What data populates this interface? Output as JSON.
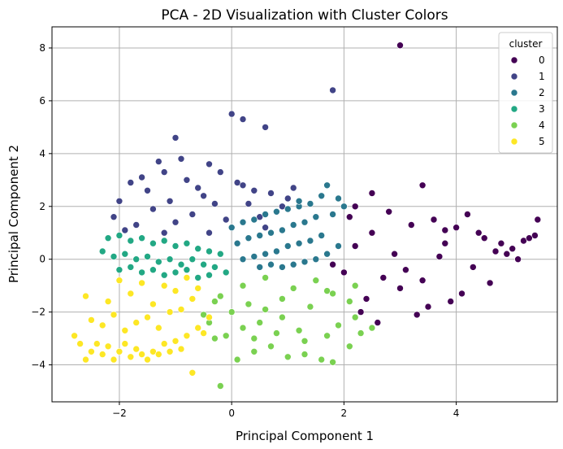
{
  "chart_data": {
    "type": "scatter",
    "title": "PCA - 2D Visualization with Cluster Colors",
    "xlabel": "Principal Component 1",
    "ylabel": "Principal Component 2",
    "xlim": [
      -3.2,
      5.8
    ],
    "ylim": [
      -5.4,
      8.8
    ],
    "xticks": [
      -2,
      0,
      2,
      4
    ],
    "yticks": [
      -4,
      -2,
      0,
      2,
      4,
      6,
      8
    ],
    "xtick_labels": [
      "−2",
      "0",
      "2",
      "4"
    ],
    "ytick_labels": [
      "−4",
      "−2",
      "0",
      "2",
      "4",
      "6",
      "8"
    ],
    "grid": true,
    "legend": {
      "title": "cluster",
      "placement": "top-right",
      "entries": [
        "0",
        "1",
        "2",
        "3",
        "4",
        "5"
      ]
    },
    "colors": [
      "#440154",
      "#414487",
      "#2a788e",
      "#22a884",
      "#7ad151",
      "#fde725"
    ],
    "series": [
      {
        "name": "0",
        "x": [
          3.0,
          2.2,
          2.5,
          3.4,
          3.8,
          4.2,
          4.5,
          4.8,
          5.0,
          5.2,
          5.4,
          5.45,
          2.1,
          2.8,
          3.2,
          3.6,
          4.0,
          4.4,
          4.7,
          5.3,
          2.6,
          2.3,
          3.5,
          4.1,
          3.9,
          4.6,
          2.4,
          3.3,
          3.1,
          2.9,
          2.7,
          2.0,
          1.8,
          3.7,
          4.3,
          5.1,
          4.9,
          2.2,
          3.0,
          3.8,
          2.5,
          3.4
        ],
        "y": [
          8.1,
          2.0,
          2.5,
          2.8,
          1.1,
          1.7,
          0.8,
          0.6,
          0.4,
          0.7,
          0.9,
          1.5,
          1.6,
          1.8,
          1.3,
          1.5,
          1.2,
          1.0,
          0.3,
          0.8,
          -2.4,
          -2.0,
          -1.8,
          -1.3,
          -1.6,
          -0.9,
          -1.5,
          -2.1,
          -0.4,
          0.2,
          -0.7,
          -0.5,
          -0.2,
          0.1,
          -0.3,
          0.0,
          0.2,
          0.5,
          -1.1,
          0.6,
          1.0,
          -0.8
        ]
      },
      {
        "name": "1",
        "x": [
          -1.0,
          0.0,
          0.2,
          0.6,
          1.8,
          -0.9,
          -1.3,
          -1.6,
          -1.8,
          -2.0,
          -2.1,
          -1.5,
          -1.2,
          -0.8,
          -0.6,
          -0.4,
          -0.2,
          0.1,
          0.4,
          0.7,
          1.0,
          1.1,
          0.9,
          -1.1,
          -1.4,
          -0.5,
          -0.3,
          0.3,
          -1.7,
          -0.7,
          -0.1,
          0.5,
          0.8,
          -1.9,
          -1.0,
          0.0,
          -0.4,
          -1.2,
          0.6,
          0.2
        ],
        "y": [
          4.6,
          5.5,
          5.3,
          5.0,
          6.4,
          3.8,
          3.7,
          3.1,
          2.9,
          2.2,
          1.6,
          2.6,
          3.3,
          3.0,
          2.7,
          3.6,
          3.3,
          2.9,
          2.6,
          2.5,
          2.3,
          2.7,
          2.0,
          2.2,
          1.9,
          2.4,
          2.1,
          2.1,
          1.3,
          1.7,
          1.5,
          1.6,
          1.8,
          1.1,
          1.4,
          1.2,
          1.0,
          1.0,
          1.2,
          2.8
        ]
      },
      {
        "name": "2",
        "x": [
          1.7,
          1.9,
          1.6,
          1.4,
          1.2,
          1.0,
          0.8,
          0.6,
          0.4,
          0.2,
          0.0,
          1.8,
          1.5,
          1.3,
          1.1,
          0.9,
          0.7,
          0.5,
          0.3,
          0.1,
          1.6,
          1.4,
          1.2,
          1.0,
          0.8,
          0.6,
          0.4,
          0.2,
          1.7,
          1.5,
          1.3,
          1.1,
          0.9,
          0.7,
          0.5,
          1.9,
          2.0,
          1.2
        ],
        "y": [
          2.8,
          2.3,
          2.4,
          2.1,
          2.0,
          1.9,
          1.8,
          1.7,
          1.5,
          1.4,
          1.2,
          1.7,
          1.6,
          1.4,
          1.3,
          1.1,
          1.0,
          0.9,
          0.8,
          0.6,
          0.9,
          0.7,
          0.6,
          0.5,
          0.3,
          0.2,
          0.1,
          0.0,
          0.2,
          0.0,
          -0.1,
          -0.2,
          -0.3,
          -0.2,
          -0.3,
          0.5,
          2.0,
          2.2
        ]
      },
      {
        "name": "3",
        "x": [
          -2.3,
          -2.2,
          -2.0,
          -1.8,
          -1.6,
          -1.4,
          -1.2,
          -1.0,
          -0.8,
          -0.6,
          -0.4,
          -0.2,
          -2.1,
          -1.9,
          -1.7,
          -1.5,
          -1.3,
          -1.1,
          -0.9,
          -0.7,
          -0.5,
          -0.3,
          -2.0,
          -1.8,
          -1.6,
          -1.4,
          -1.2,
          -1.0,
          -0.8,
          -0.6,
          -0.4,
          -0.1
        ],
        "y": [
          0.3,
          0.8,
          0.9,
          0.7,
          0.8,
          0.6,
          0.7,
          0.5,
          0.6,
          0.4,
          0.3,
          0.2,
          0.1,
          0.2,
          0.0,
          0.1,
          -0.1,
          0.0,
          -0.2,
          0.0,
          -0.2,
          -0.3,
          -0.4,
          -0.3,
          -0.5,
          -0.4,
          -0.6,
          -0.5,
          -0.4,
          -0.7,
          -0.6,
          -0.5
        ]
      },
      {
        "name": "4",
        "x": [
          -0.2,
          0.1,
          0.4,
          0.7,
          1.0,
          1.3,
          1.6,
          1.8,
          2.1,
          2.3,
          2.5,
          2.2,
          1.7,
          1.9,
          1.2,
          0.8,
          0.5,
          0.2,
          -0.1,
          -0.3,
          -0.4,
          -0.5,
          0.0,
          0.3,
          0.6,
          0.9,
          1.4,
          1.7,
          1.1,
          -0.2,
          0.2,
          0.6,
          1.5,
          1.8,
          2.1,
          0.9,
          0.4,
          -0.3,
          1.3,
          2.2
        ],
        "y": [
          -4.8,
          -3.8,
          -3.5,
          -3.3,
          -3.7,
          -3.6,
          -3.8,
          -3.9,
          -3.3,
          -2.8,
          -2.6,
          -2.2,
          -2.9,
          -2.5,
          -2.7,
          -2.8,
          -2.4,
          -2.6,
          -2.9,
          -3.0,
          -2.4,
          -2.1,
          -2.0,
          -1.7,
          -1.9,
          -1.5,
          -1.8,
          -1.2,
          -1.1,
          -1.4,
          -1.0,
          -0.7,
          -0.8,
          -1.3,
          -1.6,
          -2.2,
          -3.0,
          -1.6,
          -3.1,
          -1.0
        ]
      },
      {
        "name": "5",
        "x": [
          -2.8,
          -2.7,
          -2.6,
          -2.5,
          -2.4,
          -2.3,
          -2.2,
          -2.1,
          -2.0,
          -1.9,
          -1.8,
          -1.7,
          -1.6,
          -1.5,
          -1.4,
          -1.3,
          -1.2,
          -1.1,
          -1.0,
          -0.9,
          -0.8,
          -0.7,
          -0.6,
          -0.5,
          -0.4,
          -2.5,
          -2.3,
          -2.1,
          -1.9,
          -1.7,
          -1.5,
          -1.3,
          -1.1,
          -0.9,
          -0.7,
          -2.6,
          -2.2,
          -1.8,
          -1.4,
          -1.0,
          -0.6,
          -2.0,
          -1.6,
          -1.2,
          -0.8
        ],
        "y": [
          -2.9,
          -3.2,
          -3.8,
          -3.5,
          -3.2,
          -3.6,
          -3.3,
          -3.8,
          -3.5,
          -3.2,
          -3.7,
          -3.4,
          -3.6,
          -3.8,
          -3.5,
          -3.6,
          -3.2,
          -3.5,
          -3.1,
          -3.4,
          -2.9,
          -4.3,
          -2.6,
          -2.8,
          -2.2,
          -2.3,
          -2.5,
          -2.1,
          -2.7,
          -2.4,
          -2.2,
          -2.6,
          -2.0,
          -1.9,
          -1.5,
          -1.4,
          -1.6,
          -1.3,
          -1.7,
          -1.2,
          -1.1,
          -0.8,
          -0.9,
          -1.0,
          -0.7
        ]
      }
    ]
  }
}
